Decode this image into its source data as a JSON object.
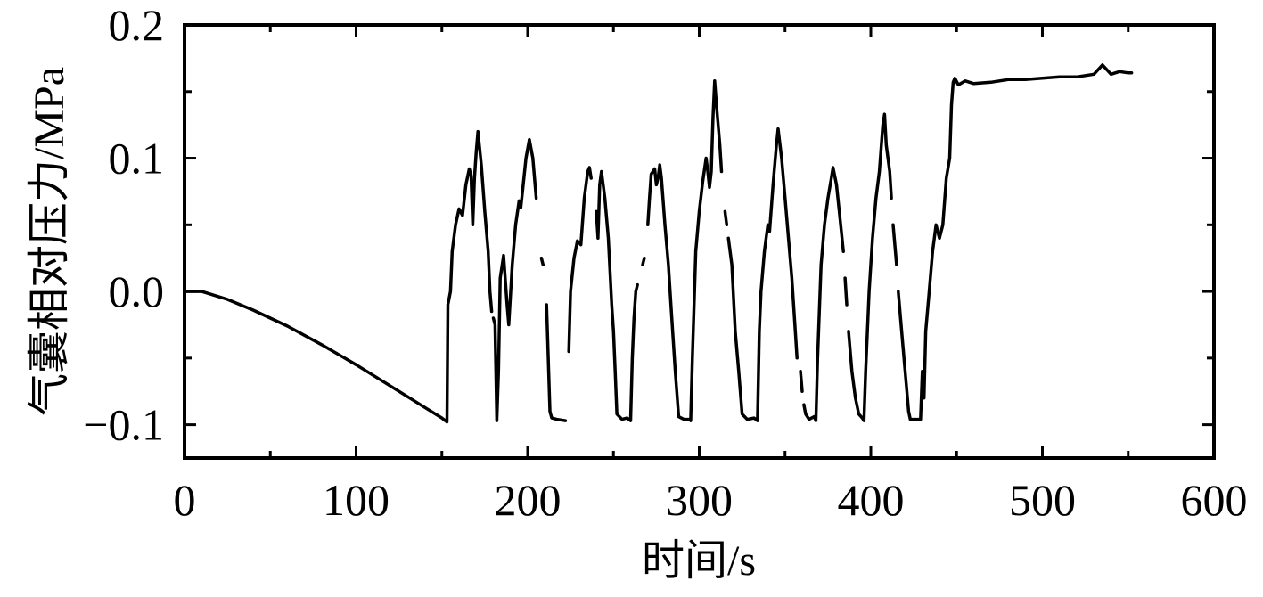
{
  "chart_data": {
    "type": "line",
    "title": "",
    "xlabel": "时间/s",
    "ylabel": "气囊相对压力/MPa",
    "xlim": [
      0,
      600
    ],
    "ylim": [
      -0.125,
      0.2
    ],
    "x_ticks": [
      0,
      100,
      200,
      300,
      400,
      500,
      600
    ],
    "x_tick_labels": [
      "0",
      "100",
      "200",
      "300",
      "400",
      "500",
      "600"
    ],
    "y_ticks": [
      -0.1,
      0.0,
      0.1,
      0.2
    ],
    "y_tick_labels": [
      "−0.1",
      "0.0",
      "0.1",
      "0.2"
    ],
    "grid": false,
    "legend": "none",
    "line_color": "#000000",
    "series": [
      {
        "segments": [
          [
            [
              0,
              0.0
            ],
            [
              10,
              0.0
            ],
            [
              25,
              -0.006
            ],
            [
              40,
              -0.014
            ],
            [
              60,
              -0.026
            ],
            [
              80,
              -0.04
            ],
            [
              100,
              -0.055
            ],
            [
              120,
              -0.071
            ],
            [
              140,
              -0.087
            ],
            [
              150,
              -0.095
            ],
            [
              152,
              -0.097
            ],
            [
              153,
              -0.098
            ],
            [
              153.5,
              -0.01
            ],
            [
              155,
              0.0
            ],
            [
              156,
              0.03
            ],
            [
              158,
              0.05
            ],
            [
              160,
              0.062
            ],
            [
              162,
              0.057
            ],
            [
              164,
              0.08
            ],
            [
              166,
              0.092
            ],
            [
              167,
              0.087
            ],
            [
              168,
              0.05
            ],
            [
              169,
              0.085
            ],
            [
              170,
              0.105
            ],
            [
              171,
              0.12
            ],
            [
              173,
              0.095
            ],
            [
              175,
              0.06
            ],
            [
              177,
              0.03
            ],
            [
              178,
              0.0
            ],
            [
              179,
              -0.015
            ]
          ],
          [
            [
              180,
              -0.02
            ],
            [
              181,
              -0.025
            ],
            [
              182,
              -0.097
            ],
            [
              183,
              -0.06
            ],
            [
              184,
              0.01
            ],
            [
              186,
              0.027
            ],
            [
              188,
              -0.01
            ],
            [
              189,
              -0.025
            ],
            [
              191,
              0.02
            ],
            [
              193,
              0.05
            ],
            [
              195,
              0.068
            ],
            [
              196,
              0.063
            ],
            [
              197,
              0.075
            ],
            [
              199,
              0.1
            ],
            [
              201,
              0.114
            ],
            [
              203,
              0.1
            ],
            [
              204,
              0.085
            ],
            [
              205,
              0.07
            ]
          ],
          [
            [
              208,
              0.025
            ],
            [
              209,
              0.02
            ]
          ],
          [
            [
              211,
              -0.01
            ],
            [
              212,
              -0.05
            ],
            [
              213,
              -0.09
            ],
            [
              214,
              -0.095
            ],
            [
              217,
              -0.096
            ],
            [
              222,
              -0.097
            ]
          ],
          [
            [
              224,
              -0.045
            ],
            [
              225,
              0.0
            ],
            [
              227,
              0.025
            ],
            [
              229,
              0.038
            ],
            [
              231,
              0.035
            ],
            [
              233,
              0.07
            ],
            [
              235,
              0.09
            ],
            [
              236,
              0.093
            ],
            [
              237,
              0.085
            ]
          ],
          [
            [
              240,
              0.06
            ],
            [
              241,
              0.04
            ],
            [
              242,
              0.08
            ],
            [
              243,
              0.09
            ],
            [
              245,
              0.07
            ],
            [
              247,
              0.04
            ],
            [
              249,
              -0.01
            ],
            [
              250,
              -0.03
            ],
            [
              251,
              -0.06
            ],
            [
              252,
              -0.092
            ],
            [
              255,
              -0.096
            ],
            [
              258,
              -0.095
            ],
            [
              260,
              -0.097
            ],
            [
              261,
              -0.05
            ],
            [
              262,
              -0.02
            ],
            [
              263,
              0.0
            ],
            [
              264,
              0.005
            ]
          ],
          [
            [
              267,
              0.02
            ],
            [
              268,
              0.025
            ]
          ],
          [
            [
              270,
              0.05
            ],
            [
              271,
              0.07
            ],
            [
              272,
              0.088
            ],
            [
              274,
              0.092
            ],
            [
              275,
              0.08
            ],
            [
              276,
              0.085
            ],
            [
              277,
              0.095
            ],
            [
              278,
              0.085
            ],
            [
              280,
              0.05
            ],
            [
              282,
              0.02
            ],
            [
              284,
              -0.02
            ],
            [
              286,
              -0.06
            ],
            [
              288,
              -0.094
            ],
            [
              291,
              -0.096
            ],
            [
              294,
              -0.096
            ],
            [
              295,
              -0.097
            ],
            [
              296,
              -0.05
            ],
            [
              298,
              0.03
            ],
            [
              300,
              0.06
            ],
            [
              302,
              0.082
            ],
            [
              304,
              0.1
            ],
            [
              305,
              0.09
            ],
            [
              306,
              0.078
            ],
            [
              307,
              0.09
            ],
            [
              308,
              0.13
            ],
            [
              309,
              0.158
            ],
            [
              310,
              0.14
            ],
            [
              312,
              0.11
            ],
            [
              313,
              0.09
            ]
          ],
          [
            [
              315,
              0.06
            ],
            [
              316,
              0.05
            ]
          ],
          [
            [
              317,
              0.04
            ],
            [
              319,
              0.02
            ],
            [
              321,
              -0.03
            ],
            [
              323,
              -0.06
            ],
            [
              325,
              -0.092
            ],
            [
              328,
              -0.096
            ],
            [
              332,
              -0.095
            ],
            [
              334,
              -0.097
            ],
            [
              335,
              -0.03
            ],
            [
              336,
              0.0
            ],
            [
              338,
              0.03
            ],
            [
              340,
              0.05
            ],
            [
              341,
              0.045
            ],
            [
              343,
              0.08
            ],
            [
              345,
              0.11
            ],
            [
              346,
              0.122
            ],
            [
              348,
              0.1
            ],
            [
              350,
              0.07
            ],
            [
              352,
              0.04
            ],
            [
              354,
              0.01
            ],
            [
              356,
              -0.03
            ],
            [
              357,
              -0.05
            ]
          ],
          [
            [
              359,
              -0.06
            ],
            [
              360,
              -0.075
            ]
          ],
          [
            [
              361,
              -0.085
            ],
            [
              362,
              -0.092
            ],
            [
              364,
              -0.096
            ],
            [
              367,
              -0.094
            ],
            [
              368,
              -0.097
            ],
            [
              369,
              -0.05
            ],
            [
              371,
              0.02
            ],
            [
              373,
              0.05
            ],
            [
              375,
              0.07
            ],
            [
              377,
              0.085
            ],
            [
              378,
              0.093
            ],
            [
              380,
              0.08
            ],
            [
              382,
              0.055
            ],
            [
              384,
              0.03
            ]
          ],
          [
            [
              385,
              0.01
            ],
            [
              386,
              -0.01
            ]
          ],
          [
            [
              387,
              -0.03
            ],
            [
              389,
              -0.06
            ],
            [
              391,
              -0.08
            ],
            [
              393,
              -0.092
            ],
            [
              395,
              -0.095
            ],
            [
              396,
              -0.097
            ],
            [
              397,
              -0.06
            ],
            [
              399,
              0.0
            ],
            [
              401,
              0.04
            ],
            [
              403,
              0.07
            ],
            [
              405,
              0.09
            ],
            [
              407,
              0.125
            ],
            [
              408,
              0.133
            ],
            [
              409,
              0.11
            ],
            [
              411,
              0.09
            ],
            [
              412,
              0.07
            ]
          ],
          [
            [
              413,
              0.05
            ],
            [
              415,
              0.02
            ]
          ],
          [
            [
              416,
              0.0
            ],
            [
              418,
              -0.03
            ],
            [
              420,
              -0.06
            ],
            [
              422,
              -0.09
            ],
            [
              423,
              -0.096
            ],
            [
              426,
              -0.096
            ],
            [
              429,
              -0.096
            ],
            [
              430,
              -0.06
            ],
            [
              431,
              -0.08
            ],
            [
              432,
              -0.03
            ],
            [
              434,
              0.0
            ],
            [
              436,
              0.03
            ],
            [
              438,
              0.05
            ],
            [
              440,
              0.04
            ],
            [
              442,
              0.05
            ],
            [
              444,
              0.085
            ],
            [
              446,
              0.1
            ],
            [
              447,
              0.14
            ],
            [
              448,
              0.157
            ],
            [
              449,
              0.16
            ],
            [
              451,
              0.155
            ],
            [
              455,
              0.158
            ],
            [
              460,
              0.156
            ],
            [
              470,
              0.157
            ],
            [
              480,
              0.159
            ],
            [
              490,
              0.159
            ],
            [
              500,
              0.16
            ],
            [
              510,
              0.161
            ],
            [
              520,
              0.161
            ],
            [
              530,
              0.163
            ],
            [
              535,
              0.17
            ],
            [
              540,
              0.163
            ],
            [
              545,
              0.165
            ],
            [
              550,
              0.164
            ],
            [
              552,
              0.164
            ]
          ]
        ]
      }
    ]
  }
}
